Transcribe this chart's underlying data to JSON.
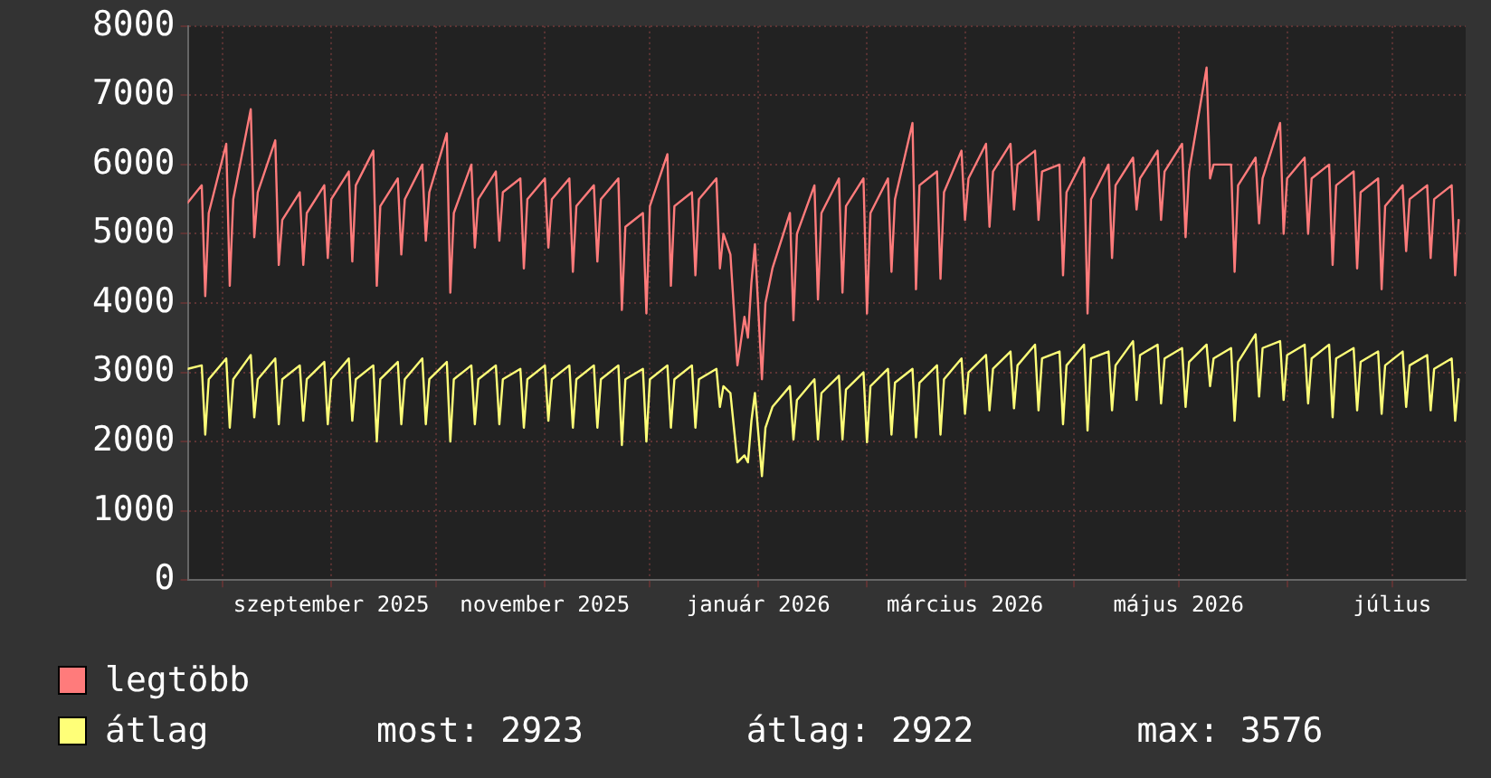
{
  "chart_data": {
    "type": "line",
    "legend": "bottom left",
    "grid": true,
    "marker": "none",
    "line_style": "solid",
    "ylim": [
      0,
      8000
    ],
    "yticks": [
      0,
      1000,
      2000,
      3000,
      4000,
      5000,
      6000,
      7000,
      8000
    ],
    "xlim": [
      "2025-07-22",
      "2026-07-22"
    ],
    "xticks": [
      {
        "value": "2025-08-01",
        "label": null
      },
      {
        "value": "2025-09-01",
        "label": "szeptember 2025"
      },
      {
        "value": "2025-10-01",
        "label": null
      },
      {
        "value": "2025-11-01",
        "label": "november 2025"
      },
      {
        "value": "2025-12-01",
        "label": null
      },
      {
        "value": "2026-01-01",
        "label": "január 2026"
      },
      {
        "value": "2026-02-01",
        "label": null
      },
      {
        "value": "2026-03-01",
        "label": "március 2026"
      },
      {
        "value": "2026-04-01",
        "label": null
      },
      {
        "value": "2026-05-01",
        "label": "május 2026"
      },
      {
        "value": "2026-06-01",
        "label": null
      },
      {
        "value": "2026-07-01",
        "label": "július"
      }
    ],
    "annotations": [
      "most: 2923",
      "átlag: 2922",
      "max: 3576"
    ],
    "x": [
      "2025-07-22",
      "2025-07-26",
      "2025-07-27",
      "2025-07-28",
      "2025-08-02",
      "2025-08-03",
      "2025-08-04",
      "2025-08-09",
      "2025-08-10",
      "2025-08-11",
      "2025-08-16",
      "2025-08-17",
      "2025-08-18",
      "2025-08-23",
      "2025-08-24",
      "2025-08-25",
      "2025-08-30",
      "2025-08-31",
      "2025-09-01",
      "2025-09-06",
      "2025-09-07",
      "2025-09-08",
      "2025-09-13",
      "2025-09-14",
      "2025-09-15",
      "2025-09-20",
      "2025-09-21",
      "2025-09-22",
      "2025-09-27",
      "2025-09-28",
      "2025-09-29",
      "2025-10-04",
      "2025-10-05",
      "2025-10-06",
      "2025-10-11",
      "2025-10-12",
      "2025-10-13",
      "2025-10-18",
      "2025-10-19",
      "2025-10-20",
      "2025-10-25",
      "2025-10-26",
      "2025-10-27",
      "2025-11-01",
      "2025-11-02",
      "2025-11-03",
      "2025-11-08",
      "2025-11-09",
      "2025-11-10",
      "2025-11-15",
      "2025-11-16",
      "2025-11-17",
      "2025-11-22",
      "2025-11-23",
      "2025-11-24",
      "2025-11-29",
      "2025-11-30",
      "2025-12-01",
      "2025-12-06",
      "2025-12-07",
      "2025-12-08",
      "2025-12-13",
      "2025-12-14",
      "2025-12-15",
      "2025-12-20",
      "2025-12-21",
      "2025-12-22",
      "2025-12-24",
      "2025-12-26",
      "2025-12-28",
      "2025-12-29",
      "2025-12-30",
      "2025-12-31",
      "2026-01-02",
      "2026-01-03",
      "2026-01-05",
      "2026-01-10",
      "2026-01-11",
      "2026-01-12",
      "2026-01-17",
      "2026-01-18",
      "2026-01-19",
      "2026-01-24",
      "2026-01-25",
      "2026-01-26",
      "2026-01-31",
      "2026-02-01",
      "2026-02-02",
      "2026-02-07",
      "2026-02-08",
      "2026-02-09",
      "2026-02-14",
      "2026-02-15",
      "2026-02-16",
      "2026-02-21",
      "2026-02-22",
      "2026-02-23",
      "2026-02-28",
      "2026-03-01",
      "2026-03-02",
      "2026-03-07",
      "2026-03-08",
      "2026-03-09",
      "2026-03-14",
      "2026-03-15",
      "2026-03-16",
      "2026-03-21",
      "2026-03-22",
      "2026-03-23",
      "2026-03-28",
      "2026-03-29",
      "2026-03-30",
      "2026-04-04",
      "2026-04-05",
      "2026-04-06",
      "2026-04-11",
      "2026-04-12",
      "2026-04-13",
      "2026-04-18",
      "2026-04-19",
      "2026-04-20",
      "2026-04-25",
      "2026-04-26",
      "2026-04-27",
      "2026-05-02",
      "2026-05-03",
      "2026-05-04",
      "2026-05-09",
      "2026-05-10",
      "2026-05-11",
      "2026-05-16",
      "2026-05-17",
      "2026-05-18",
      "2026-05-23",
      "2026-05-24",
      "2026-05-25",
      "2026-05-30",
      "2026-05-31",
      "2026-06-01",
      "2026-06-06",
      "2026-06-07",
      "2026-06-08",
      "2026-06-13",
      "2026-06-14",
      "2026-06-15",
      "2026-06-20",
      "2026-06-21",
      "2026-06-22",
      "2026-06-27",
      "2026-06-28",
      "2026-06-29",
      "2026-07-04",
      "2026-07-05",
      "2026-07-06",
      "2026-07-11",
      "2026-07-12",
      "2026-07-13",
      "2026-07-18",
      "2026-07-19",
      "2026-07-20"
    ],
    "series": [
      {
        "name": "legtöbb",
        "color": "#ff7b7b",
        "values": [
          5450,
          5700,
          4100,
          5300,
          6300,
          4250,
          5500,
          6800,
          4950,
          5600,
          6350,
          4550,
          5200,
          5600,
          4550,
          5300,
          5700,
          4650,
          5500,
          5900,
          4600,
          5700,
          6200,
          4250,
          5400,
          5800,
          4700,
          5500,
          6000,
          4900,
          5600,
          6450,
          4150,
          5300,
          6000,
          4800,
          5500,
          5900,
          4900,
          5600,
          5800,
          4500,
          5500,
          5800,
          4800,
          5500,
          5800,
          4450,
          5400,
          5700,
          4600,
          5500,
          5800,
          3900,
          5100,
          5300,
          3850,
          5400,
          6150,
          4250,
          5400,
          5600,
          4400,
          5500,
          5800,
          4500,
          5000,
          4700,
          3100,
          3800,
          3500,
          4300,
          4850,
          2900,
          4000,
          4500,
          5300,
          3750,
          5000,
          5700,
          4050,
          5300,
          5800,
          4150,
          5400,
          5800,
          3850,
          5300,
          5800,
          4450,
          5500,
          6600,
          4200,
          5700,
          5900,
          4350,
          5600,
          6200,
          5200,
          5800,
          6300,
          5100,
          5900,
          6300,
          5350,
          6000,
          6200,
          5200,
          5900,
          6000,
          4400,
          5600,
          6100,
          3850,
          5500,
          6000,
          4650,
          5700,
          6100,
          5350,
          5800,
          6200,
          5200,
          5900,
          6300,
          4950,
          5900,
          7400,
          5800,
          6000,
          6000,
          4450,
          5700,
          6100,
          5150,
          5800,
          6600,
          5000,
          5800,
          6100,
          5000,
          5800,
          6000,
          4550,
          5700,
          5900,
          4500,
          5600,
          5800,
          4200,
          5400,
          5700,
          4750,
          5500,
          5700,
          4650,
          5500,
          5700,
          4400,
          5200
        ]
      },
      {
        "name": "átlag",
        "color": "#ffff78",
        "values": [
          3050,
          3100,
          2100,
          2900,
          3200,
          2200,
          2900,
          3250,
          2350,
          2900,
          3200,
          2250,
          2900,
          3100,
          2300,
          2900,
          3150,
          2250,
          2900,
          3200,
          2300,
          2900,
          3100,
          2000,
          2900,
          3150,
          2250,
          2900,
          3200,
          2250,
          2900,
          3150,
          2000,
          2900,
          3100,
          2250,
          2900,
          3100,
          2250,
          2900,
          3050,
          2200,
          2900,
          3100,
          2300,
          2900,
          3100,
          2200,
          2900,
          3100,
          2200,
          2900,
          3100,
          1950,
          2900,
          3050,
          2000,
          2900,
          3100,
          2200,
          2900,
          3100,
          2200,
          2900,
          3050,
          2500,
          2800,
          2700,
          1700,
          1800,
          1700,
          2300,
          2700,
          1500,
          2200,
          2500,
          2800,
          2030,
          2600,
          2900,
          2030,
          2700,
          2950,
          2030,
          2750,
          3000,
          1990,
          2800,
          3050,
          2100,
          2850,
          3050,
          2060,
          2850,
          3100,
          2100,
          2900,
          3200,
          2400,
          3000,
          3250,
          2450,
          3050,
          3300,
          2480,
          3100,
          3400,
          2450,
          3200,
          3300,
          2250,
          3100,
          3400,
          2160,
          3200,
          3300,
          2450,
          3100,
          3450,
          2600,
          3250,
          3400,
          2550,
          3200,
          3350,
          2500,
          3150,
          3400,
          2800,
          3200,
          3350,
          2300,
          3150,
          3550,
          2650,
          3350,
          3450,
          2600,
          3250,
          3400,
          2550,
          3200,
          3400,
          2350,
          3200,
          3350,
          2450,
          3150,
          3300,
          2400,
          3100,
          3300,
          2500,
          3100,
          3250,
          2450,
          3050,
          3200,
          2300,
          2900
        ]
      }
    ]
  }
}
